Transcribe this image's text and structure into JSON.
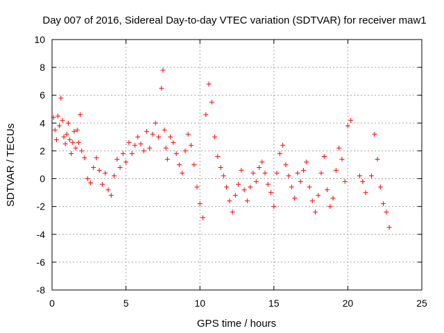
{
  "chart_data": {
    "type": "scatter",
    "title": "Day 007 of 2016, Sidereal Day-to-day VTEC variation (SDTVAR) for receiver maw1",
    "xlabel": "GPS time / hours",
    "ylabel": "SDTVAR / TECUs",
    "xlim": [
      0,
      25
    ],
    "ylim": [
      -8,
      10
    ],
    "xticks": [
      0,
      5,
      10,
      15,
      20,
      25
    ],
    "yticks": [
      -8,
      -6,
      -4,
      -2,
      0,
      2,
      4,
      6,
      8,
      10
    ],
    "grid": true,
    "marker": "+",
    "color": "#ff0000",
    "series": [
      {
        "name": "SDTVAR",
        "x": [
          0.1,
          0.2,
          0.3,
          0.4,
          0.5,
          0.6,
          0.7,
          0.8,
          0.9,
          1.0,
          1.1,
          1.2,
          1.3,
          1.4,
          1.5,
          1.6,
          1.7,
          1.8,
          1.9,
          2.0,
          2.2,
          2.4,
          2.6,
          2.8,
          3.0,
          3.2,
          3.4,
          3.6,
          3.8,
          4.0,
          4.2,
          4.4,
          4.6,
          4.8,
          5.0,
          5.2,
          5.4,
          5.6,
          5.8,
          6.0,
          6.2,
          6.4,
          6.6,
          6.8,
          7.0,
          7.2,
          7.4,
          7.5,
          7.6,
          7.7,
          7.8,
          8.0,
          8.2,
          8.4,
          8.6,
          8.8,
          9.0,
          9.2,
          9.4,
          9.6,
          9.8,
          10.0,
          10.2,
          10.4,
          10.6,
          10.8,
          11.0,
          11.2,
          11.4,
          11.6,
          11.8,
          12.0,
          12.2,
          12.4,
          12.6,
          12.8,
          13.0,
          13.2,
          13.4,
          13.6,
          13.8,
          14.0,
          14.2,
          14.4,
          14.6,
          14.8,
          15.0,
          15.2,
          15.4,
          15.6,
          15.8,
          16.0,
          16.2,
          16.4,
          16.6,
          16.8,
          17.0,
          17.2,
          17.4,
          17.6,
          17.8,
          18.0,
          18.2,
          18.4,
          18.6,
          18.8,
          19.0,
          19.2,
          19.4,
          19.6,
          19.8,
          20.0,
          20.2,
          20.8,
          21.0,
          21.2,
          21.6,
          21.8,
          22.0,
          22.2,
          22.4,
          22.6,
          22.8
        ],
        "y": [
          4.4,
          3.5,
          2.8,
          4.5,
          3.8,
          5.8,
          4.2,
          3.0,
          2.5,
          3.2,
          4.0,
          2.8,
          1.8,
          2.6,
          3.4,
          2.2,
          3.5,
          2.6,
          4.6,
          2.0,
          1.5,
          0.0,
          -0.3,
          0.8,
          1.5,
          0.6,
          -0.4,
          0.4,
          -0.8,
          -1.2,
          0.2,
          1.4,
          0.8,
          1.8,
          1.2,
          2.6,
          1.8,
          2.4,
          3.0,
          2.5,
          2.0,
          3.4,
          2.2,
          3.2,
          4.0,
          3.0,
          6.5,
          7.8,
          3.5,
          2.2,
          1.4,
          3.0,
          2.6,
          1.8,
          1.0,
          0.4,
          2.0,
          3.2,
          2.4,
          1.0,
          -0.6,
          -1.8,
          -2.8,
          4.6,
          6.8,
          5.5,
          3.0,
          1.6,
          0.8,
          0.2,
          -0.6,
          -1.6,
          -2.4,
          -1.2,
          -0.4,
          0.6,
          -0.8,
          -1.6,
          -0.6,
          0.4,
          -0.2,
          0.8,
          1.2,
          0.4,
          -0.4,
          -1.0,
          -2.0,
          0.4,
          1.8,
          2.4,
          1.0,
          0.2,
          -0.6,
          -1.4,
          0.4,
          -0.2,
          0.6,
          1.2,
          -0.6,
          -1.6,
          -2.4,
          -1.2,
          0.4,
          1.6,
          -0.8,
          -2.0,
          -1.4,
          0.6,
          2.2,
          1.4,
          -0.2,
          3.8,
          4.2,
          0.2,
          -0.2,
          -1.0,
          0.2,
          3.2,
          1.4,
          -0.6,
          -1.8,
          -2.4,
          -3.5
        ]
      }
    ]
  }
}
